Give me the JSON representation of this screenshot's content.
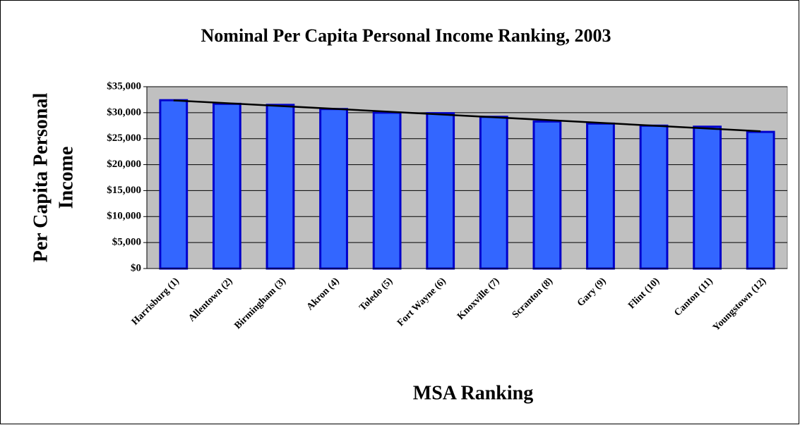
{
  "chart_data": {
    "type": "bar",
    "title": "Nominal Per Capita Personal Income Ranking, 2003",
    "xlabel": "MSA Ranking",
    "ylabel": [
      "Per Capita Personal",
      "Income"
    ],
    "categories": [
      "Harrisburg (1)",
      "Allentown (2)",
      "Birmingham (3)",
      "Akron (4)",
      "Toledo (5)",
      "Fort Wayne (6)",
      "Knoxville (7)",
      "Scranton (8)",
      "Gary (9)",
      "Flint (10)",
      "Canton (11)",
      "Youngstown (12)"
    ],
    "values": [
      32400,
      31700,
      31500,
      30700,
      30000,
      29900,
      29200,
      28300,
      27900,
      27500,
      27300,
      26300
    ],
    "color": "#3366ff",
    "edge_color": "#0000cc",
    "trendline": true,
    "ylim": [
      0,
      35000
    ],
    "yticks": [
      {
        "value": 0,
        "label": "$0"
      },
      {
        "value": 5000,
        "label": "$5,000"
      },
      {
        "value": 10000,
        "label": "$10,000"
      },
      {
        "value": 15000,
        "label": "$15,000"
      },
      {
        "value": 20000,
        "label": "$20,000"
      },
      {
        "value": 25000,
        "label": "$25,000"
      },
      {
        "value": 30000,
        "label": "$30,000"
      },
      {
        "value": 35000,
        "label": "$35,000"
      }
    ],
    "grid": true
  }
}
